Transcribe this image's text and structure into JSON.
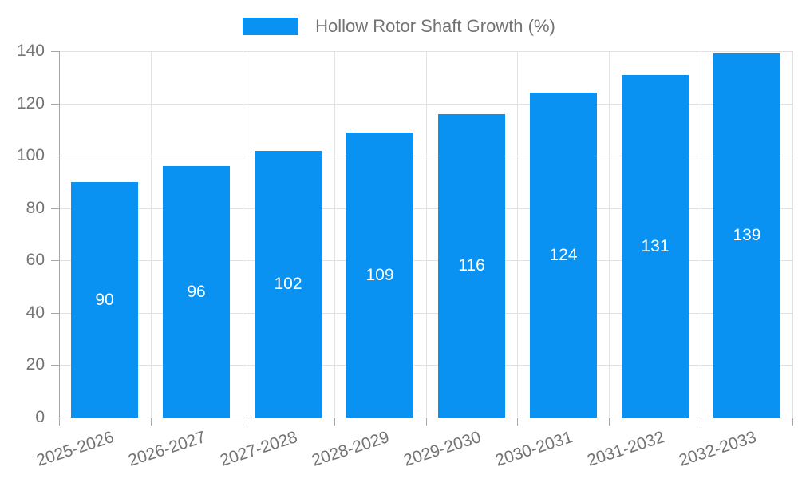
{
  "legend": {
    "label": "Hollow Rotor Shaft Growth (%)"
  },
  "chart_data": {
    "type": "bar",
    "title": "Hollow Rotor Shaft Growth (%)",
    "categories": [
      "2025-2026",
      "2026-2027",
      "2027-2028",
      "2028-2029",
      "2029-2030",
      "2030-2031",
      "2031-2032",
      "2032-2033"
    ],
    "values": [
      90,
      96,
      102,
      109,
      116,
      124,
      131,
      139
    ],
    "value_labels": [
      "90",
      "96",
      "102",
      "109",
      "116",
      "124",
      "131",
      "139"
    ],
    "xlabel": "",
    "ylabel": "",
    "ylim": [
      0,
      140
    ],
    "yticks": [
      0,
      20,
      40,
      60,
      80,
      100,
      120,
      140
    ],
    "grid": true,
    "legend_position": "top",
    "bar_color": "#0a92f3",
    "value_label_color": "#ffffff",
    "grid_color": "#e2e2e2",
    "axis_color": "#a6a6a6",
    "tick_label_color": "#737373"
  }
}
